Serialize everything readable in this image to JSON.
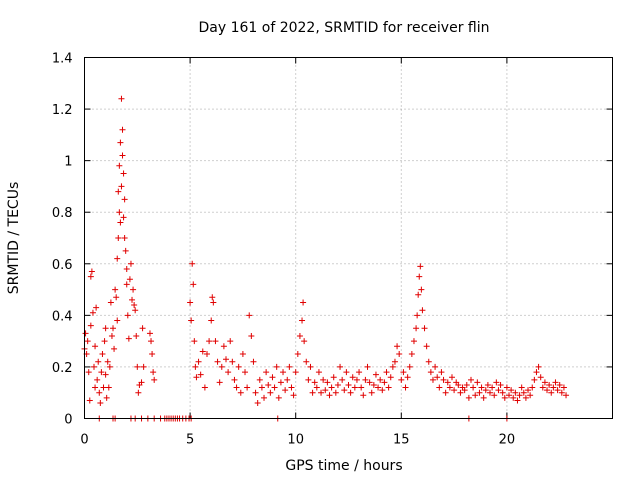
{
  "chart_data": {
    "type": "scatter",
    "title": "Day 161 of 2022, SRMTID for receiver flin",
    "xlabel": "GPS time / hours",
    "ylabel": "SRMTID / TECUs",
    "xlim": [
      0,
      25
    ],
    "ylim": [
      0,
      1.4
    ],
    "x_ticks": [
      0,
      5,
      10,
      15,
      20
    ],
    "x_tick_labels": [
      "0",
      "5",
      "10",
      "15",
      "20"
    ],
    "y_ticks": [
      0,
      0.2,
      0.4,
      0.6,
      0.8,
      1.0,
      1.2,
      1.4
    ],
    "y_tick_labels": [
      "0",
      "0.2",
      "0.4",
      "0.6",
      "0.8",
      "1",
      "1.2",
      "1.4"
    ],
    "grid": true,
    "marker": "+",
    "color": "#e00000",
    "series": [
      {
        "name": "SRMTID",
        "points": [
          [
            0.0,
            0.27
          ],
          [
            0.05,
            0.33
          ],
          [
            0.1,
            0.25
          ],
          [
            0.15,
            0.3
          ],
          [
            0.2,
            0.18
          ],
          [
            0.25,
            0.07
          ],
          [
            0.3,
            0.36
          ],
          [
            0.3,
            0.55
          ],
          [
            0.35,
            0.57
          ],
          [
            0.4,
            0.41
          ],
          [
            0.45,
            0.2
          ],
          [
            0.5,
            0.12
          ],
          [
            0.5,
            0.28
          ],
          [
            0.55,
            0.43
          ],
          [
            0.6,
            0.15
          ],
          [
            0.65,
            0.22
          ],
          [
            0.7,
            0.1
          ],
          [
            0.75,
            0.06
          ],
          [
            0.8,
            0.18
          ],
          [
            0.85,
            0.25
          ],
          [
            0.9,
            0.12
          ],
          [
            0.95,
            0.3
          ],
          [
            1.0,
            0.17
          ],
          [
            1.0,
            0.35
          ],
          [
            1.05,
            0.08
          ],
          [
            1.1,
            0.22
          ],
          [
            1.15,
            0.12
          ],
          [
            1.2,
            0.2
          ],
          [
            1.25,
            0.45
          ],
          [
            1.3,
            0.32
          ],
          [
            1.35,
            0.35
          ],
          [
            1.4,
            0.27
          ],
          [
            1.45,
            0.5
          ],
          [
            1.5,
            0.47
          ],
          [
            1.55,
            0.38
          ],
          [
            1.55,
            0.62
          ],
          [
            1.6,
            0.7
          ],
          [
            1.6,
            0.88
          ],
          [
            1.65,
            0.8
          ],
          [
            1.65,
            0.98
          ],
          [
            1.7,
            1.07
          ],
          [
            1.7,
            0.76
          ],
          [
            1.75,
            0.9
          ],
          [
            1.75,
            1.24
          ],
          [
            1.8,
            1.12
          ],
          [
            1.8,
            1.02
          ],
          [
            1.85,
            0.95
          ],
          [
            1.85,
            0.78
          ],
          [
            1.9,
            0.85
          ],
          [
            1.9,
            0.7
          ],
          [
            1.95,
            0.65
          ],
          [
            2.0,
            0.58
          ],
          [
            2.0,
            0.52
          ],
          [
            2.05,
            0.4
          ],
          [
            2.1,
            0.31
          ],
          [
            2.15,
            0.54
          ],
          [
            2.2,
            0.6
          ],
          [
            2.25,
            0.46
          ],
          [
            2.3,
            0.5
          ],
          [
            2.35,
            0.44
          ],
          [
            2.4,
            0.42
          ],
          [
            2.45,
            0.32
          ],
          [
            2.5,
            0.2
          ],
          [
            2.55,
            0.1
          ],
          [
            2.6,
            0.13
          ],
          [
            2.7,
            0.14
          ],
          [
            2.75,
            0.35
          ],
          [
            2.8,
            0.2
          ],
          [
            3.1,
            0.33
          ],
          [
            3.15,
            0.3
          ],
          [
            3.2,
            0.25
          ],
          [
            3.25,
            0.18
          ],
          [
            3.3,
            0.15
          ],
          [
            5.0,
            0.45
          ],
          [
            5.05,
            0.38
          ],
          [
            5.1,
            0.6
          ],
          [
            5.15,
            0.52
          ],
          [
            5.2,
            0.3
          ],
          [
            5.25,
            0.2
          ],
          [
            5.3,
            0.16
          ],
          [
            5.4,
            0.22
          ],
          [
            5.5,
            0.17
          ],
          [
            5.6,
            0.26
          ],
          [
            5.7,
            0.12
          ],
          [
            5.8,
            0.25
          ],
          [
            5.9,
            0.3
          ],
          [
            6.0,
            0.38
          ],
          [
            6.05,
            0.47
          ],
          [
            6.1,
            0.45
          ],
          [
            6.2,
            0.3
          ],
          [
            6.3,
            0.22
          ],
          [
            6.4,
            0.14
          ],
          [
            6.5,
            0.2
          ],
          [
            6.6,
            0.28
          ],
          [
            6.7,
            0.23
          ],
          [
            6.8,
            0.18
          ],
          [
            6.9,
            0.3
          ],
          [
            7.0,
            0.22
          ],
          [
            7.1,
            0.15
          ],
          [
            7.2,
            0.12
          ],
          [
            7.3,
            0.2
          ],
          [
            7.4,
            0.1
          ],
          [
            7.5,
            0.25
          ],
          [
            7.6,
            0.18
          ],
          [
            7.7,
            0.12
          ],
          [
            7.8,
            0.4
          ],
          [
            7.9,
            0.32
          ],
          [
            8.0,
            0.22
          ],
          [
            8.1,
            0.1
          ],
          [
            8.2,
            0.06
          ],
          [
            8.3,
            0.15
          ],
          [
            8.4,
            0.12
          ],
          [
            8.5,
            0.08
          ],
          [
            8.6,
            0.18
          ],
          [
            8.7,
            0.13
          ],
          [
            8.8,
            0.1
          ],
          [
            8.9,
            0.16
          ],
          [
            9.0,
            0.12
          ],
          [
            9.1,
            0.2
          ],
          [
            9.2,
            0.08
          ],
          [
            9.3,
            0.14
          ],
          [
            9.4,
            0.18
          ],
          [
            9.5,
            0.11
          ],
          [
            9.6,
            0.15
          ],
          [
            9.7,
            0.2
          ],
          [
            9.8,
            0.12
          ],
          [
            9.9,
            0.09
          ],
          [
            10.0,
            0.18
          ],
          [
            10.1,
            0.25
          ],
          [
            10.2,
            0.32
          ],
          [
            10.3,
            0.38
          ],
          [
            10.35,
            0.45
          ],
          [
            10.4,
            0.3
          ],
          [
            10.5,
            0.22
          ],
          [
            10.6,
            0.15
          ],
          [
            10.7,
            0.2
          ],
          [
            10.8,
            0.1
          ],
          [
            10.9,
            0.14
          ],
          [
            11.0,
            0.12
          ],
          [
            11.1,
            0.18
          ],
          [
            11.2,
            0.1
          ],
          [
            11.3,
            0.15
          ],
          [
            11.4,
            0.11
          ],
          [
            11.5,
            0.14
          ],
          [
            11.6,
            0.09
          ],
          [
            11.7,
            0.12
          ],
          [
            11.8,
            0.16
          ],
          [
            11.9,
            0.1
          ],
          [
            12.0,
            0.13
          ],
          [
            12.1,
            0.2
          ],
          [
            12.2,
            0.15
          ],
          [
            12.3,
            0.11
          ],
          [
            12.4,
            0.18
          ],
          [
            12.5,
            0.13
          ],
          [
            12.6,
            0.1
          ],
          [
            12.7,
            0.16
          ],
          [
            12.8,
            0.12
          ],
          [
            12.9,
            0.15
          ],
          [
            13.0,
            0.18
          ],
          [
            13.1,
            0.12
          ],
          [
            13.2,
            0.09
          ],
          [
            13.3,
            0.15
          ],
          [
            13.4,
            0.2
          ],
          [
            13.5,
            0.14
          ],
          [
            13.6,
            0.1
          ],
          [
            13.7,
            0.13
          ],
          [
            13.8,
            0.17
          ],
          [
            13.9,
            0.12
          ],
          [
            14.0,
            0.15
          ],
          [
            14.1,
            0.11
          ],
          [
            14.2,
            0.14
          ],
          [
            14.3,
            0.18
          ],
          [
            14.4,
            0.12
          ],
          [
            14.5,
            0.16
          ],
          [
            14.6,
            0.2
          ],
          [
            14.7,
            0.22
          ],
          [
            14.8,
            0.28
          ],
          [
            14.9,
            0.25
          ],
          [
            15.0,
            0.15
          ],
          [
            15.1,
            0.18
          ],
          [
            15.2,
            0.12
          ],
          [
            15.3,
            0.16
          ],
          [
            15.4,
            0.2
          ],
          [
            15.5,
            0.25
          ],
          [
            15.6,
            0.3
          ],
          [
            15.7,
            0.35
          ],
          [
            15.75,
            0.4
          ],
          [
            15.8,
            0.48
          ],
          [
            15.85,
            0.55
          ],
          [
            15.9,
            0.59
          ],
          [
            15.95,
            0.5
          ],
          [
            16.0,
            0.42
          ],
          [
            16.1,
            0.35
          ],
          [
            16.2,
            0.28
          ],
          [
            16.3,
            0.22
          ],
          [
            16.4,
            0.18
          ],
          [
            16.5,
            0.15
          ],
          [
            16.6,
            0.2
          ],
          [
            16.7,
            0.16
          ],
          [
            16.8,
            0.12
          ],
          [
            16.9,
            0.18
          ],
          [
            17.0,
            0.15
          ],
          [
            17.1,
            0.1
          ],
          [
            17.2,
            0.14
          ],
          [
            17.3,
            0.12
          ],
          [
            17.4,
            0.16
          ],
          [
            17.5,
            0.11
          ],
          [
            17.6,
            0.14
          ],
          [
            17.7,
            0.13
          ],
          [
            17.8,
            0.1
          ],
          [
            17.9,
            0.12
          ],
          [
            18.0,
            0.11
          ],
          [
            18.1,
            0.13
          ],
          [
            18.2,
            0.08
          ],
          [
            18.3,
            0.15
          ],
          [
            18.4,
            0.12
          ],
          [
            18.5,
            0.09
          ],
          [
            18.6,
            0.14
          ],
          [
            18.7,
            0.1
          ],
          [
            18.8,
            0.12
          ],
          [
            18.9,
            0.08
          ],
          [
            19.0,
            0.11
          ],
          [
            19.1,
            0.13
          ],
          [
            19.2,
            0.1
          ],
          [
            19.3,
            0.12
          ],
          [
            19.4,
            0.09
          ],
          [
            19.5,
            0.14
          ],
          [
            19.6,
            0.11
          ],
          [
            19.7,
            0.13
          ],
          [
            19.8,
            0.1
          ],
          [
            19.9,
            0.08
          ],
          [
            20.0,
            0.12
          ],
          [
            20.1,
            0.09
          ],
          [
            20.2,
            0.11
          ],
          [
            20.3,
            0.08
          ],
          [
            20.4,
            0.1
          ],
          [
            20.5,
            0.07
          ],
          [
            20.6,
            0.09
          ],
          [
            20.7,
            0.12
          ],
          [
            20.8,
            0.1
          ],
          [
            20.9,
            0.08
          ],
          [
            21.0,
            0.11
          ],
          [
            21.1,
            0.09
          ],
          [
            21.2,
            0.12
          ],
          [
            21.3,
            0.15
          ],
          [
            21.4,
            0.18
          ],
          [
            21.5,
            0.2
          ],
          [
            21.6,
            0.16
          ],
          [
            21.7,
            0.12
          ],
          [
            21.8,
            0.14
          ],
          [
            21.9,
            0.11
          ],
          [
            22.0,
            0.13
          ],
          [
            22.1,
            0.1
          ],
          [
            22.2,
            0.12
          ],
          [
            22.3,
            0.14
          ],
          [
            22.4,
            0.11
          ],
          [
            22.5,
            0.13
          ],
          [
            22.6,
            0.1
          ],
          [
            22.7,
            0.12
          ],
          [
            22.8,
            0.09
          ],
          [
            0.7,
            0.0
          ],
          [
            1.35,
            0.0
          ],
          [
            1.45,
            0.0
          ],
          [
            2.2,
            0.0
          ],
          [
            2.4,
            0.0
          ],
          [
            2.7,
            0.0
          ],
          [
            3.0,
            0.0
          ],
          [
            3.3,
            0.0
          ],
          [
            3.6,
            0.0
          ],
          [
            3.8,
            0.0
          ],
          [
            3.9,
            0.0
          ],
          [
            4.0,
            0.0
          ],
          [
            4.1,
            0.0
          ],
          [
            4.2,
            0.0
          ],
          [
            4.3,
            0.0
          ],
          [
            4.4,
            0.0
          ],
          [
            4.5,
            0.0
          ],
          [
            4.65,
            0.0
          ],
          [
            4.8,
            0.0
          ],
          [
            4.95,
            0.0
          ],
          [
            5.05,
            0.0
          ],
          [
            9.15,
            0.0
          ],
          [
            18.2,
            0.0
          ],
          [
            20.0,
            0.0
          ]
        ]
      }
    ]
  }
}
